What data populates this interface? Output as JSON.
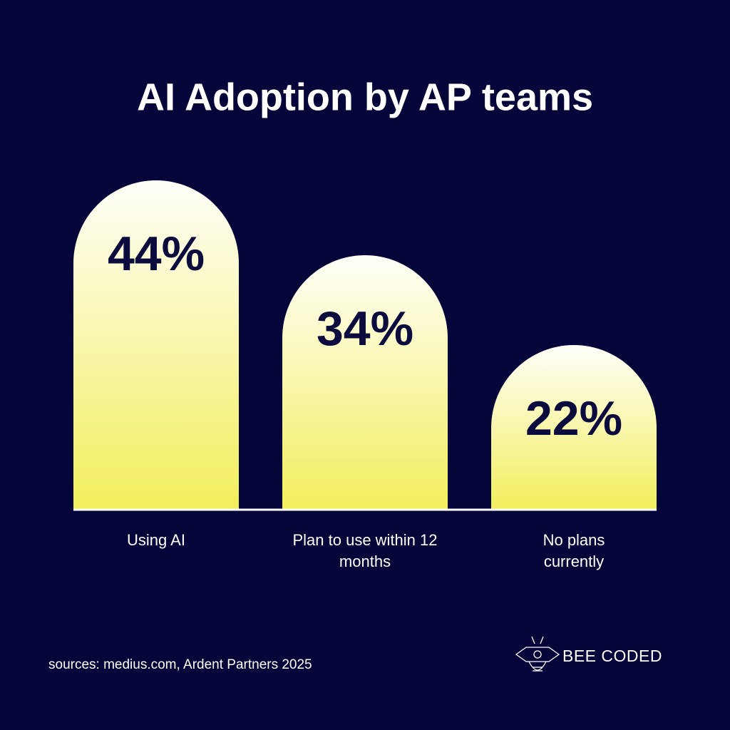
{
  "chart_data": {
    "type": "bar",
    "title": "AI Adoption by AP teams",
    "categories": [
      "Using AI",
      "Plan to use within 12 months",
      "No plans currently"
    ],
    "values": [
      44,
      34,
      22
    ],
    "value_labels": [
      "44%",
      "34%",
      "22%"
    ],
    "color": "#f2ee5c",
    "source": "sources: medius.com, Ardent Partners 2025",
    "brand": "BEE CODED"
  }
}
